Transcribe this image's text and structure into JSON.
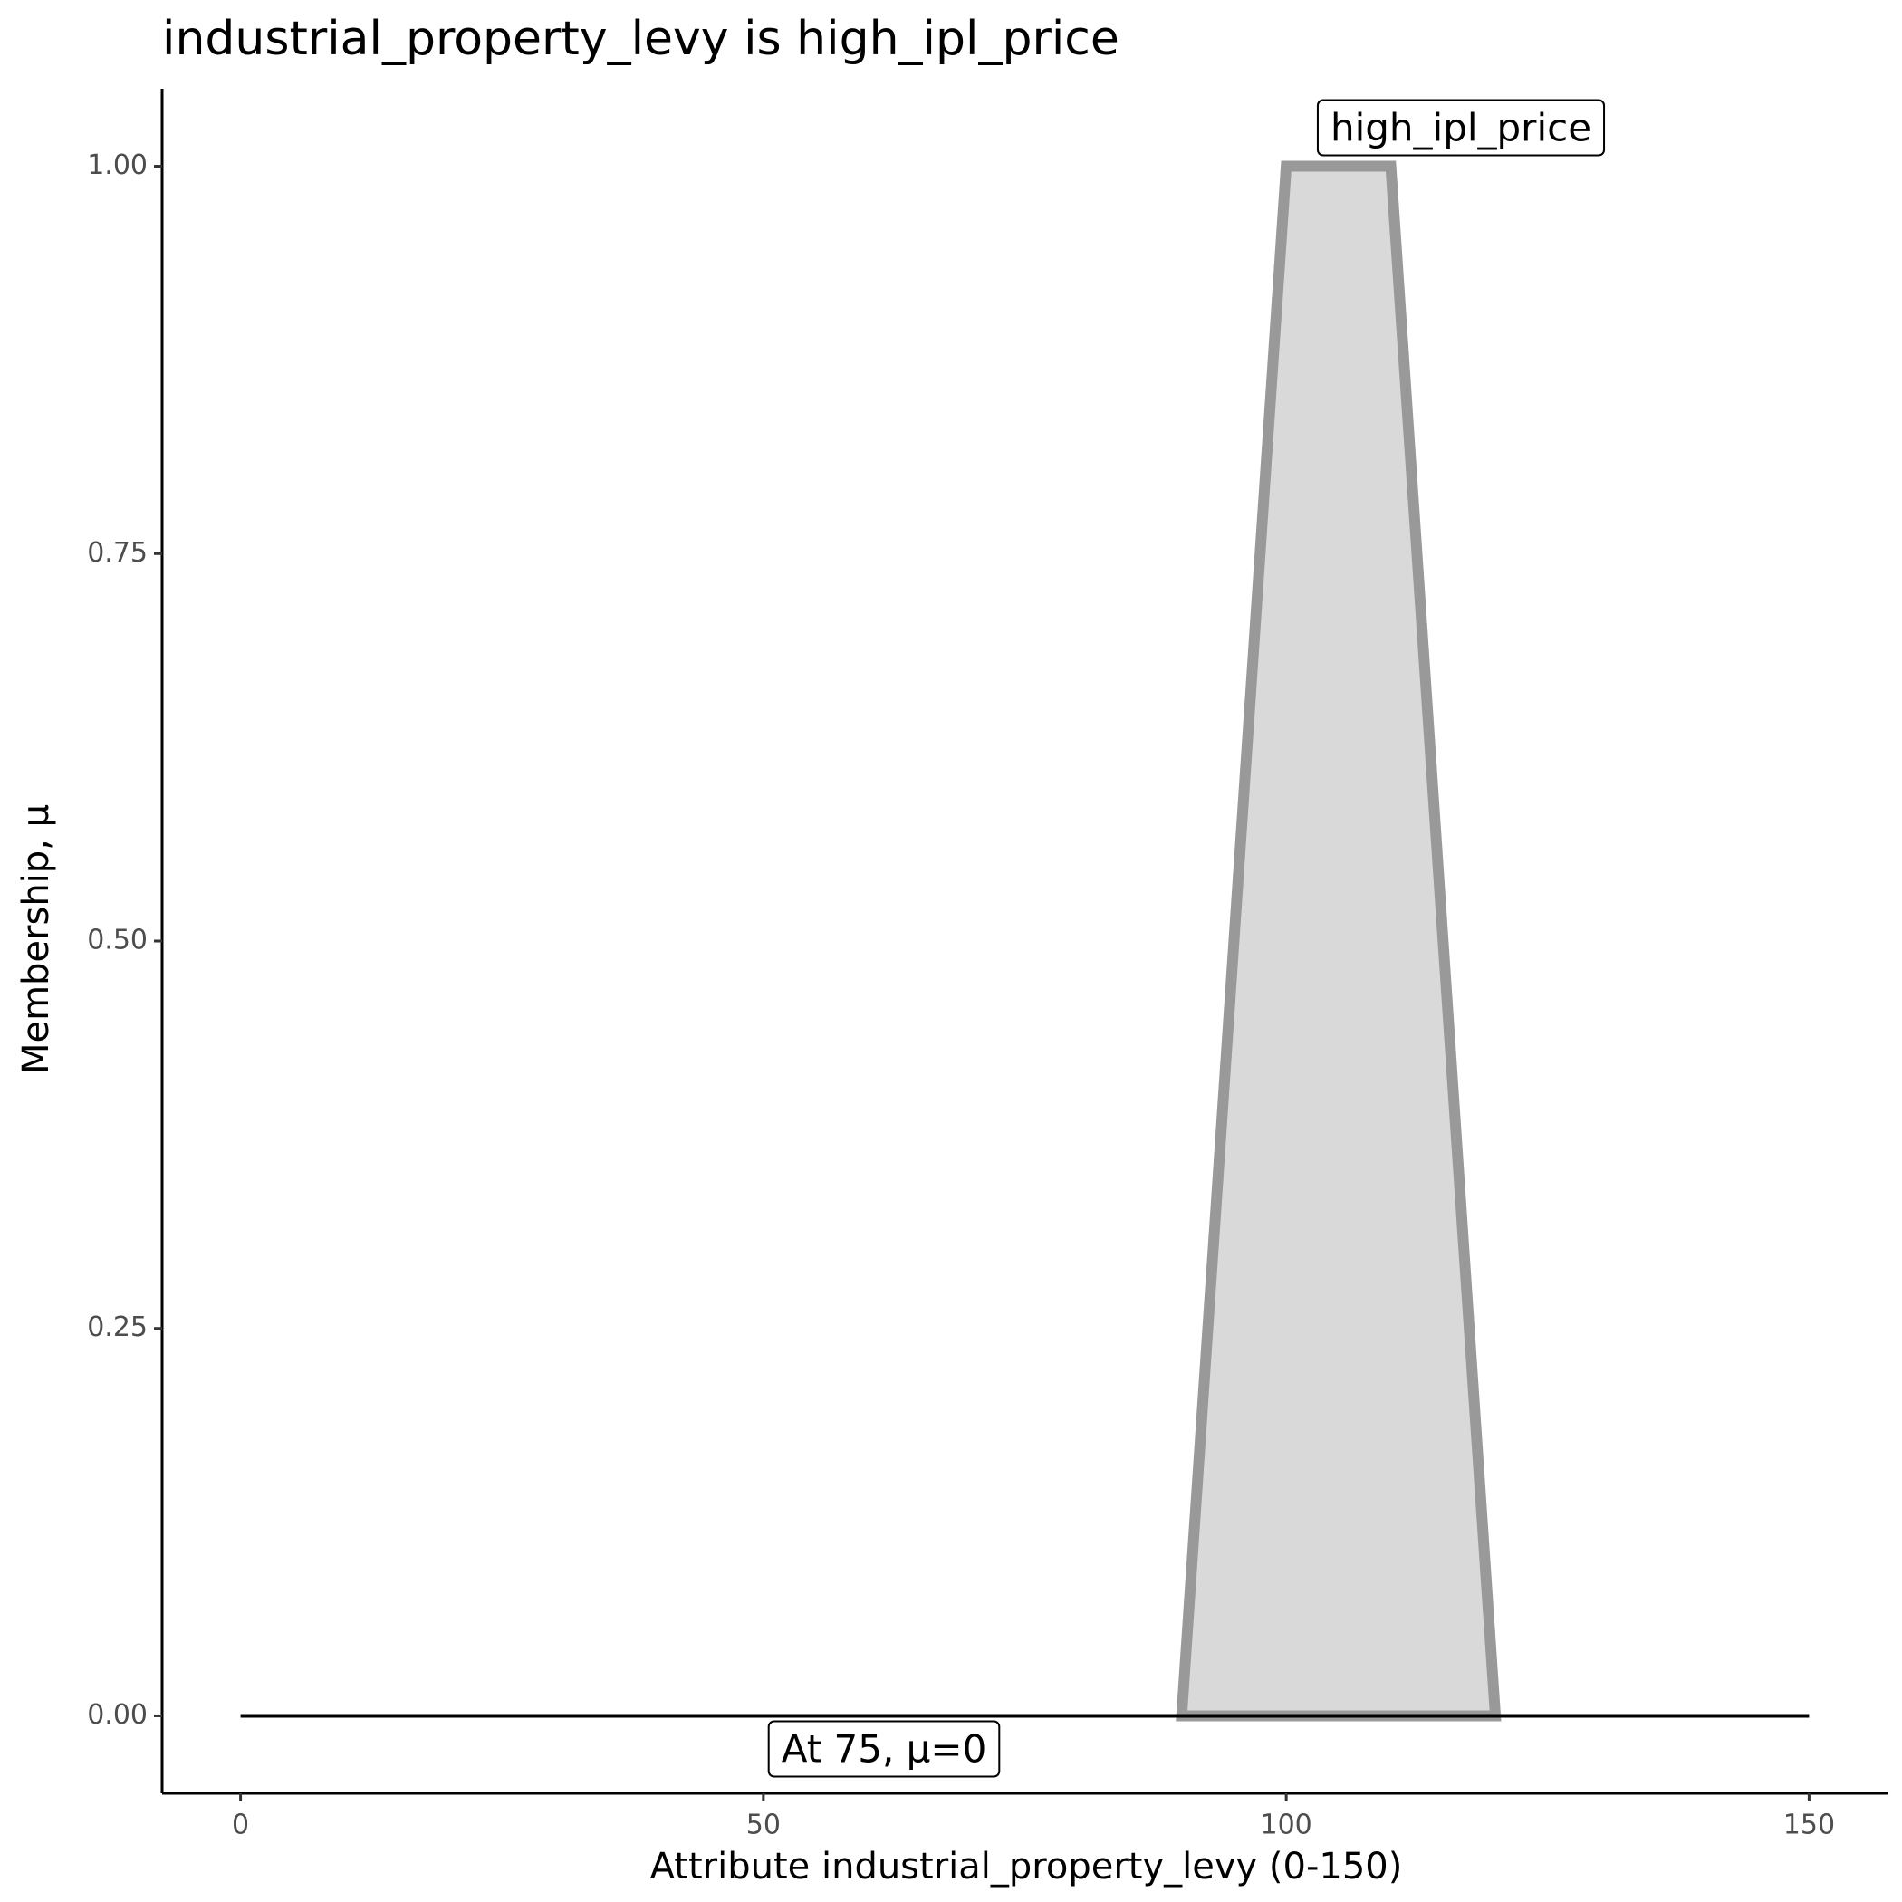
{
  "chart_data": {
    "type": "line",
    "title": "industrial_property_levy is high_ipl_price",
    "xlabel": "Attribute industrial_property_levy (0-150)",
    "ylabel": "Membership, μ",
    "series": [
      {
        "name": "high_ipl_price",
        "color": "#999999",
        "fill": "#d9d9d9",
        "x": [
          90,
          100,
          110,
          120
        ],
        "values": [
          0,
          1,
          1,
          0
        ]
      },
      {
        "x": [
          0,
          150
        ],
        "values": [
          0,
          0
        ],
        "color": "#000000"
      }
    ],
    "annotation": "At 75, μ=0",
    "xlim": [
      -7.5,
      157.5
    ],
    "ylim": [
      -0.05,
      1.05
    ],
    "xticks": [
      0,
      50,
      100,
      150
    ],
    "yticks": [
      {
        "value": 0,
        "label": "0.00"
      },
      {
        "value": 0.25,
        "label": "0.25"
      },
      {
        "value": 0.5,
        "label": "0.50"
      },
      {
        "value": 0.75,
        "label": "0.75"
      },
      {
        "value": 1,
        "label": "1.00"
      }
    ],
    "grid": false
  }
}
